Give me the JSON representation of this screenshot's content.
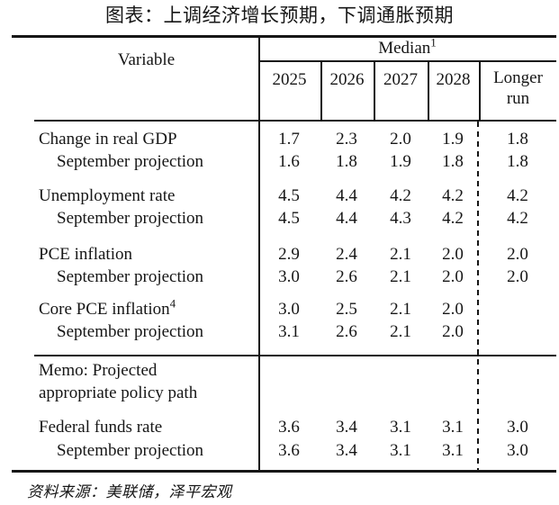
{
  "chart_data": {
    "type": "table",
    "title": "图表：上调经济增长预期，下调通胀预期",
    "header": {
      "variable": "Variable",
      "group": {
        "label": "Median",
        "sup": "1"
      },
      "years": [
        "2025",
        "2026",
        "2027",
        "2028"
      ],
      "longer_run": {
        "line1": "Longer",
        "line2": "run"
      }
    },
    "rows": [
      {
        "label": "Change in real GDP",
        "values": [
          "1.7",
          "2.3",
          "2.0",
          "1.9",
          "1.8"
        ]
      },
      {
        "label": "September projection",
        "values": [
          "1.6",
          "1.8",
          "1.9",
          "1.8",
          "1.8"
        ]
      },
      {
        "label": "Unemployment rate",
        "values": [
          "4.5",
          "4.4",
          "4.2",
          "4.2",
          "4.2"
        ]
      },
      {
        "label": "September projection",
        "values": [
          "4.5",
          "4.4",
          "4.3",
          "4.2",
          "4.2"
        ]
      },
      {
        "label": "PCE inflation",
        "values": [
          "2.9",
          "2.4",
          "2.1",
          "2.0",
          "2.0"
        ]
      },
      {
        "label": "September projection",
        "values": [
          "3.0",
          "2.6",
          "2.1",
          "2.0",
          "2.0"
        ]
      },
      {
        "label": "Core PCE inflation",
        "sup": "4",
        "values": [
          "3.0",
          "2.5",
          "2.1",
          "2.0",
          ""
        ]
      },
      {
        "label": "September projection",
        "values": [
          "3.1",
          "2.6",
          "2.1",
          "2.0",
          ""
        ]
      },
      {
        "label": "Federal funds rate",
        "values": [
          "3.6",
          "3.4",
          "3.1",
          "3.1",
          "3.0"
        ]
      },
      {
        "label": "September projection",
        "values": [
          "3.6",
          "3.4",
          "3.1",
          "3.1",
          "3.0"
        ]
      }
    ],
    "memo": {
      "line1": "Memo: Projected",
      "line2": "appropriate policy path"
    },
    "source": "资料来源：美联储，泽平宏观",
    "colors": {
      "ink": "#161616",
      "background": "#ffffff"
    },
    "layout": {
      "grid": "ruled table, dashed divider before Longer run column",
      "legend": "none"
    }
  }
}
